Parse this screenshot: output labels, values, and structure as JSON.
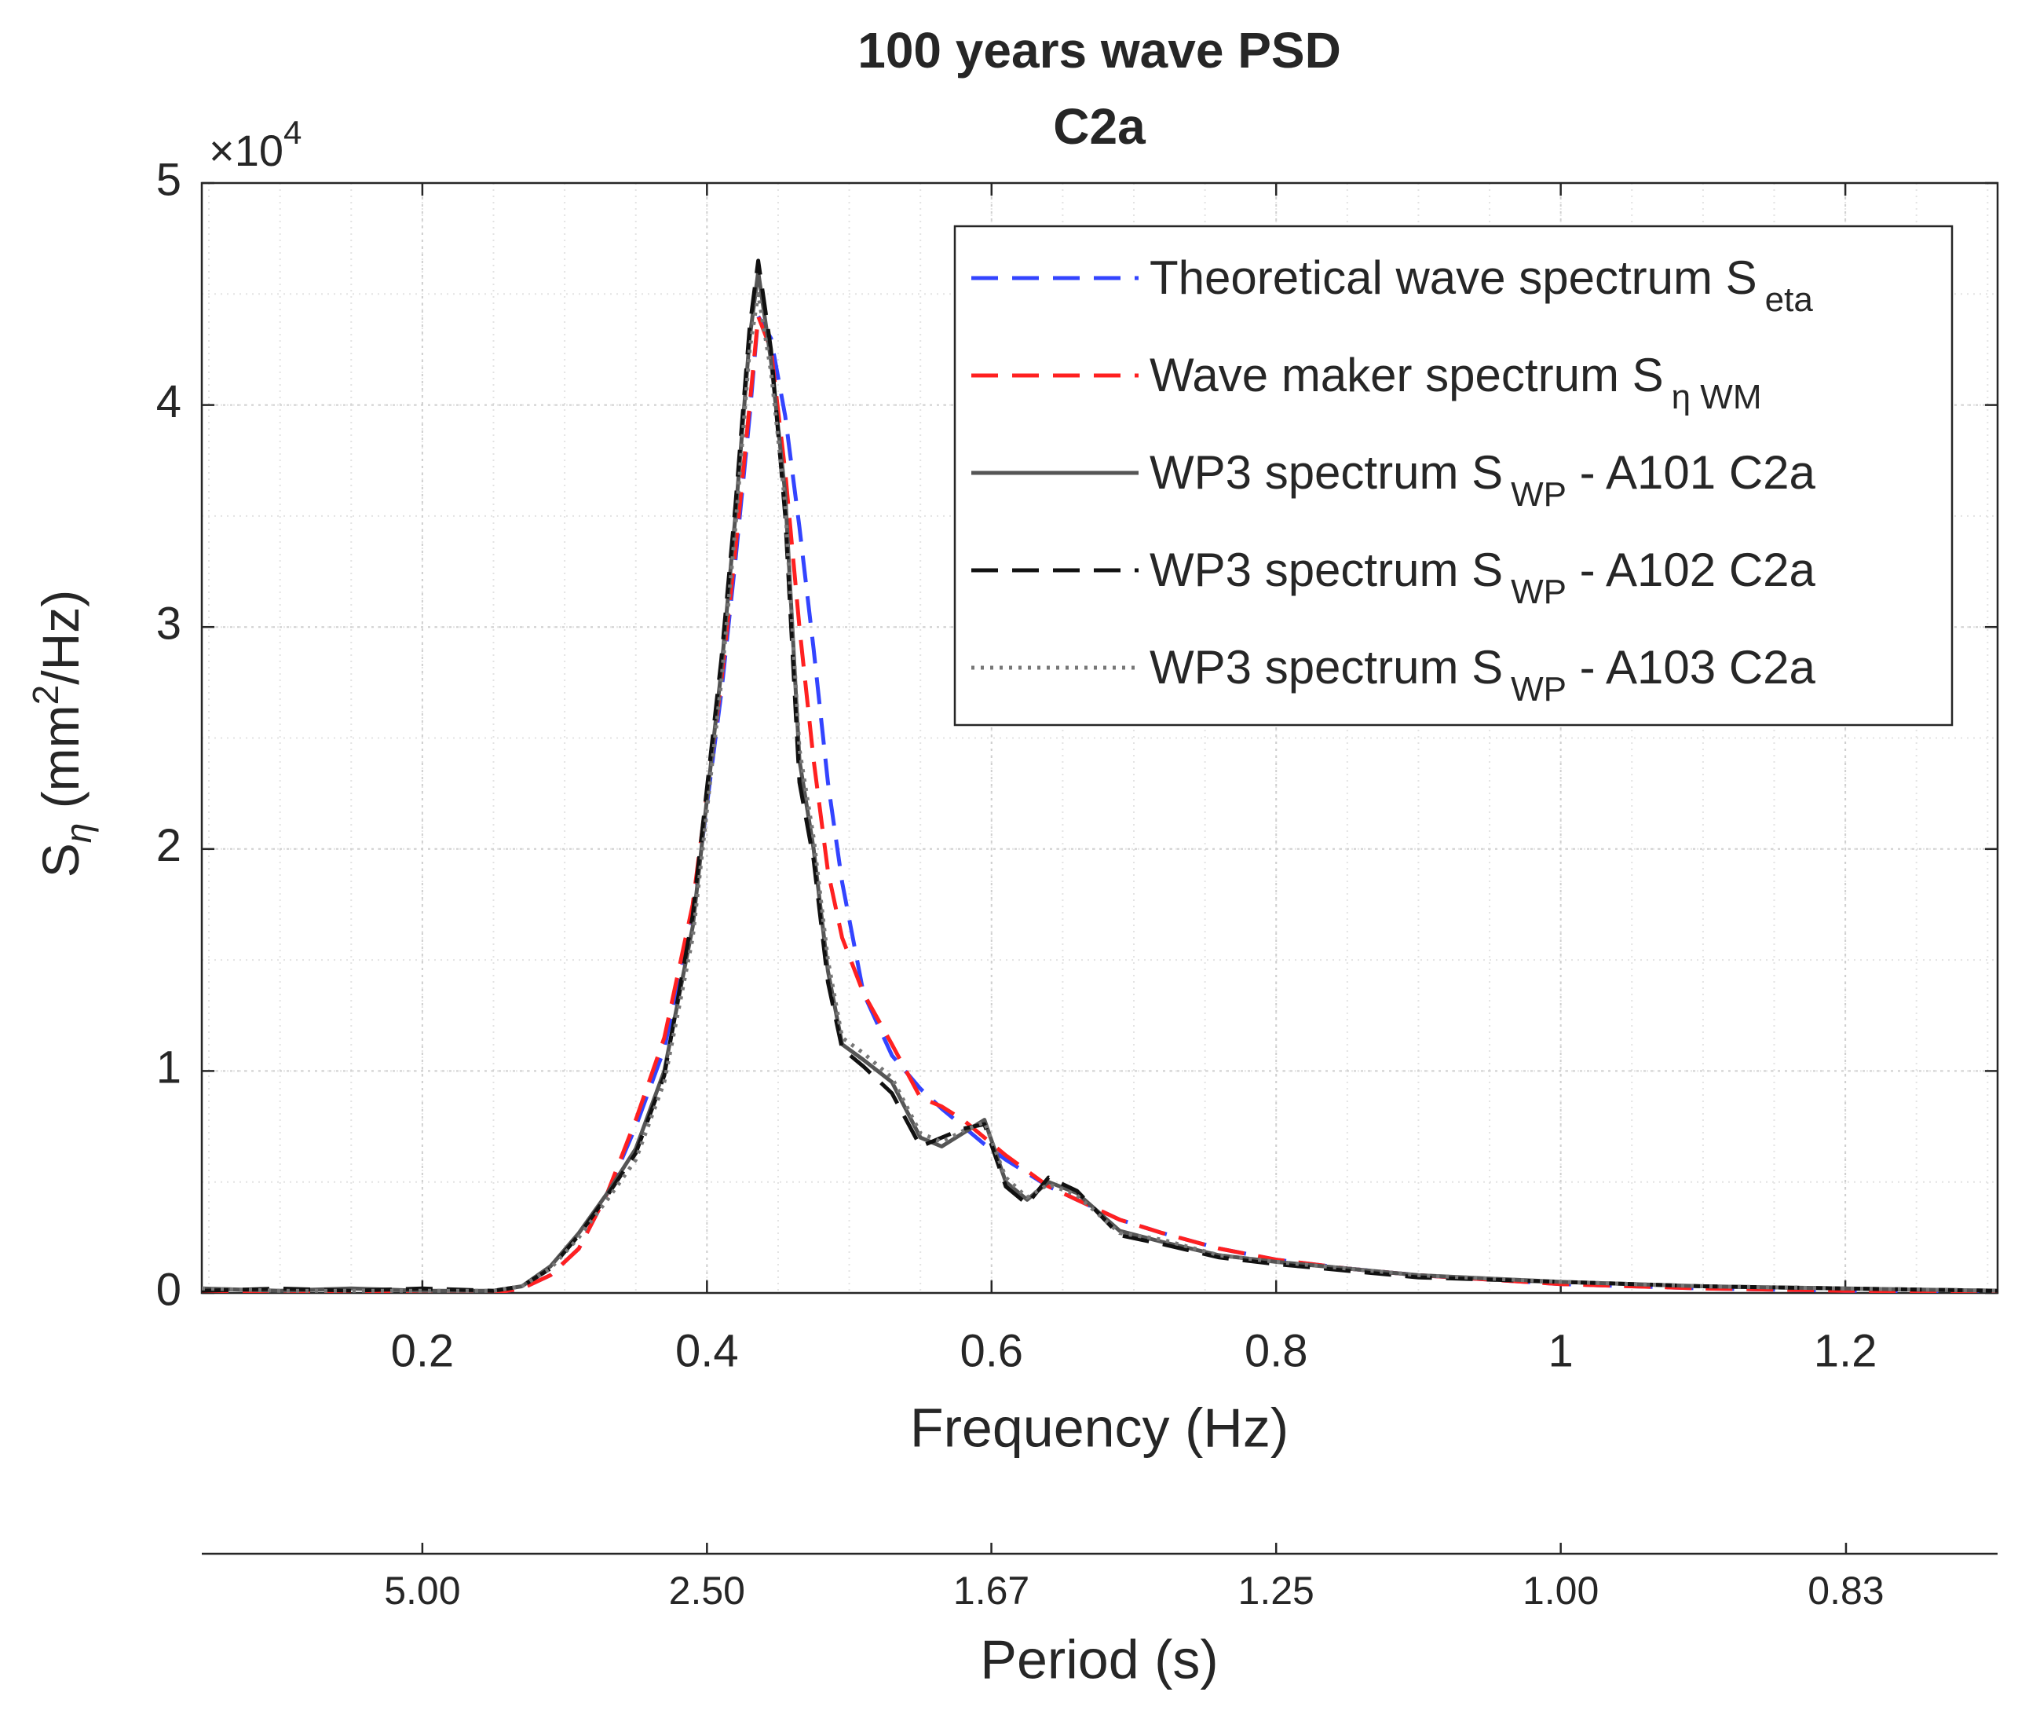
{
  "chart_data": {
    "type": "line",
    "title": [
      "100 years wave PSD",
      "C2a"
    ],
    "xlabel": "Frequency (Hz)",
    "ylabel": [
      "S",
      "η",
      " (mm",
      "2",
      "/Hz)"
    ],
    "yexponent": {
      "base": "×10",
      "power": "4"
    },
    "xlim": [
      0.045,
      1.307
    ],
    "xticks": [
      0.2,
      0.4,
      0.6,
      0.8,
      1,
      1.2
    ],
    "ylim": [
      0,
      5
    ],
    "yticks": [
      0,
      1,
      2,
      3,
      4,
      5
    ],
    "grid": true,
    "minor_grid": true,
    "legend": "upper right",
    "x2": {
      "label": "Period (s)",
      "scale": "reciprocal",
      "ticks": [
        {
          "value": 5,
          "label": "5.00"
        },
        {
          "value": 2.5,
          "label": "2.50"
        },
        {
          "value": 1.667,
          "label": "1.67"
        },
        {
          "value": 1.25,
          "label": "1.25"
        },
        {
          "value": 1,
          "label": "1.00"
        },
        {
          "value": 0.833,
          "label": "0.83"
        }
      ]
    },
    "x": [
      0.045,
      0.1,
      0.15,
      0.2,
      0.25,
      0.27,
      0.29,
      0.31,
      0.33,
      0.35,
      0.37,
      0.39,
      0.41,
      0.42,
      0.43,
      0.436,
      0.445,
      0.455,
      0.465,
      0.475,
      0.485,
      0.495,
      0.51,
      0.53,
      0.55,
      0.565,
      0.58,
      0.595,
      0.61,
      0.625,
      0.64,
      0.66,
      0.69,
      0.72,
      0.76,
      0.8,
      0.85,
      0.9,
      1.0,
      1.1,
      1.2,
      1.307
    ],
    "series": [
      {
        "name": [
          "Theoretical wave spectrum S",
          "eta"
        ],
        "color": "#3344ff",
        "dash": "dashed",
        "values": [
          0,
          0,
          0,
          0,
          0,
          0.02,
          0.08,
          0.2,
          0.45,
          0.75,
          1.1,
          1.7,
          2.7,
          3.3,
          3.95,
          4.4,
          4.3,
          3.95,
          3.45,
          2.9,
          2.3,
          1.85,
          1.35,
          1.07,
          0.92,
          0.83,
          0.75,
          0.67,
          0.6,
          0.54,
          0.48,
          0.42,
          0.33,
          0.27,
          0.2,
          0.15,
          0.11,
          0.08,
          0.04,
          0.02,
          0.01,
          0.005
        ]
      },
      {
        "name": [
          "Wave maker spectrum S",
          "η WM"
        ],
        "color": "#ff2020",
        "dash": "dashed",
        "values": [
          0,
          0,
          0,
          0,
          0,
          0.02,
          0.08,
          0.2,
          0.45,
          0.78,
          1.15,
          1.75,
          2.75,
          3.35,
          4.0,
          4.4,
          4.25,
          3.7,
          3.0,
          2.4,
          1.9,
          1.6,
          1.35,
          1.12,
          0.88,
          0.84,
          0.78,
          0.7,
          0.62,
          0.55,
          0.48,
          0.42,
          0.33,
          0.27,
          0.2,
          0.15,
          0.11,
          0.08,
          0.04,
          0.02,
          0.01,
          0.005
        ]
      },
      {
        "name": [
          "WP3 spectrum S",
          "WP",
          " - A101 C2a"
        ],
        "color": "#555555",
        "dash": "solid",
        "values": [
          0.02,
          0.01,
          0.02,
          0.01,
          0.01,
          0.03,
          0.12,
          0.27,
          0.45,
          0.65,
          1.0,
          1.65,
          2.8,
          3.5,
          4.3,
          4.6,
          4.2,
          3.6,
          2.4,
          2.0,
          1.45,
          1.12,
          1.05,
          0.95,
          0.7,
          0.66,
          0.72,
          0.78,
          0.5,
          0.42,
          0.5,
          0.45,
          0.28,
          0.23,
          0.17,
          0.14,
          0.11,
          0.08,
          0.05,
          0.03,
          0.02,
          0.01
        ]
      },
      {
        "name": [
          "WP3 spectrum S",
          "WP",
          " - A102 C2a"
        ],
        "color": "#111111",
        "dash": "dashed",
        "values": [
          0.01,
          0.02,
          0.01,
          0.02,
          0.01,
          0.03,
          0.11,
          0.26,
          0.44,
          0.63,
          0.98,
          1.7,
          2.85,
          3.55,
          4.35,
          4.65,
          4.25,
          3.5,
          2.3,
          1.95,
          1.4,
          1.1,
          1.02,
          0.9,
          0.66,
          0.7,
          0.74,
          0.76,
          0.48,
          0.4,
          0.52,
          0.46,
          0.26,
          0.22,
          0.16,
          0.13,
          0.1,
          0.07,
          0.05,
          0.03,
          0.02,
          0.01
        ]
      },
      {
        "name": [
          "WP3 spectrum S",
          "WP",
          " - A103 C2a"
        ],
        "color": "#777777",
        "dash": "dotted",
        "values": [
          0.02,
          0.01,
          0.01,
          0.01,
          0.01,
          0.03,
          0.11,
          0.25,
          0.42,
          0.6,
          0.95,
          1.6,
          2.75,
          3.45,
          4.25,
          4.5,
          4.15,
          3.55,
          2.45,
          2.05,
          1.5,
          1.15,
          1.08,
          0.97,
          0.72,
          0.68,
          0.73,
          0.77,
          0.52,
          0.43,
          0.49,
          0.44,
          0.27,
          0.24,
          0.17,
          0.14,
          0.11,
          0.08,
          0.05,
          0.03,
          0.02,
          0.01
        ]
      }
    ]
  }
}
